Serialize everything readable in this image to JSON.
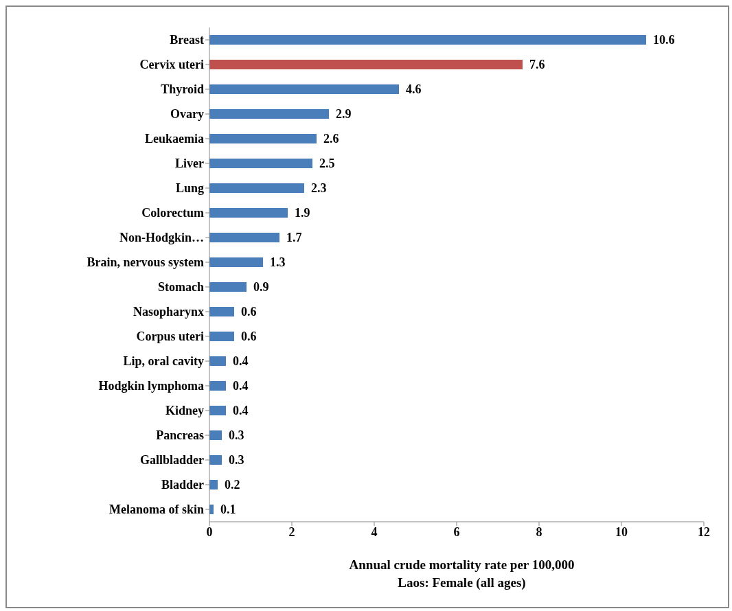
{
  "chart_data": {
    "type": "bar",
    "orientation": "horizontal",
    "categories": [
      "Breast",
      "Cervix uteri",
      "Thyroid",
      "Ovary",
      "Leukaemia",
      "Liver",
      "Lung",
      "Colorectum",
      "Non-Hodgkin…",
      "Brain, nervous system",
      "Stomach",
      "Nasopharynx",
      "Corpus uteri",
      "Lip, oral cavity",
      "Hodgkin lymphoma",
      "Kidney",
      "Pancreas",
      "Gallbladder",
      "Bladder",
      "Melanoma of skin"
    ],
    "values": [
      10.6,
      7.6,
      4.6,
      2.9,
      2.6,
      2.5,
      2.3,
      1.9,
      1.7,
      1.3,
      0.9,
      0.6,
      0.6,
      0.4,
      0.4,
      0.4,
      0.3,
      0.3,
      0.2,
      0.1
    ],
    "colors": [
      "#4a7ebb",
      "#c0504d",
      "#4a7ebb",
      "#4a7ebb",
      "#4a7ebb",
      "#4a7ebb",
      "#4a7ebb",
      "#4a7ebb",
      "#4a7ebb",
      "#4a7ebb",
      "#4a7ebb",
      "#4a7ebb",
      "#4a7ebb",
      "#4a7ebb",
      "#4a7ebb",
      "#4a7ebb",
      "#4a7ebb",
      "#4a7ebb",
      "#4a7ebb",
      "#4a7ebb"
    ],
    "xlim": [
      0,
      12
    ],
    "xticks": [
      0,
      2,
      4,
      6,
      8,
      10,
      12
    ],
    "xlabel": "Annual crude mortality rate per 100,000\nLaos: Female (all ages)",
    "data_labels": true
  }
}
